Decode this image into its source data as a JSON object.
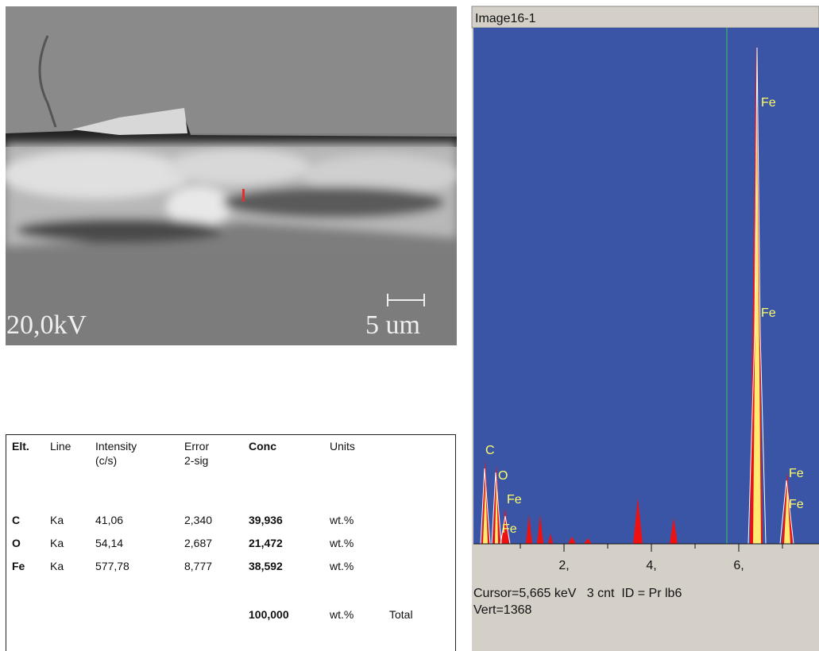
{
  "sem_image": {
    "voltage": "20,0kV",
    "scale_bar": "5 um"
  },
  "table": {
    "header": [
      [
        "Elt."
      ],
      [
        "Line"
      ],
      [
        "Intensity",
        "(c/s)"
      ],
      [
        "Error",
        "2-sig"
      ],
      [
        "Conc"
      ],
      [
        "Units"
      ]
    ],
    "rows": [
      [
        "C",
        "Ka",
        "41,06",
        "2,340",
        "39,936",
        "wt.%"
      ],
      [
        "O",
        "Ka",
        "54,14",
        "2,687",
        "21,472",
        "wt.%"
      ],
      [
        "Fe",
        "Ka",
        "577,78",
        "8,777",
        "38,592",
        "wt.%"
      ]
    ],
    "total": [
      "100,000",
      "wt.%",
      "Total"
    ]
  },
  "spectrum": {
    "title": "Image16-1",
    "x_labels": [
      "2,",
      "4,",
      "6,"
    ],
    "peak_labels": [
      "C",
      "O",
      "Fe",
      "Fe",
      "Fe",
      "Fe",
      "Fe",
      "Fe"
    ],
    "status": [
      "Cursor=5,665 keV   3 cnt  ID = Pr lb6",
      "Vert=1368"
    ]
  }
}
